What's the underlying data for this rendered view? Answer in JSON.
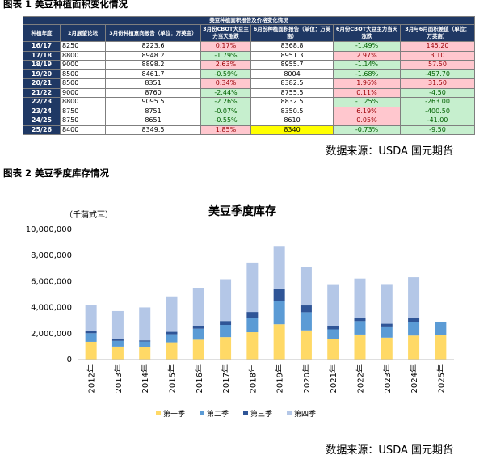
{
  "caption1": "图表 1 美豆种植面积变化情况",
  "caption2": "图表 2 美豆季度库存情况",
  "source1": "数据来源：USDA 国元期货",
  "source2": "数据来源：USDA 国元期货",
  "table": {
    "title": "美豆种植面积报告及价格变化情况",
    "headers": [
      "种植年度",
      "2月展望论坛",
      "3月份种植意向报告（单位：万英亩）",
      "3月份CBOT大豆主力当天涨跌",
      "6月份种植面积报告（单位：万英亩）",
      "6月份CBOT大豆主力当天涨跌",
      "3月与6月面积差值（单位：万英亩）"
    ],
    "rows": [
      {
        "year": "16/17",
        "feb": "8250",
        "mar": "8223.6",
        "marchg": "0.17%",
        "jun": "8368.8",
        "junchg": "-1.49%",
        "diff": "145.20"
      },
      {
        "year": "17/18",
        "feb": "8800",
        "mar": "8948.2",
        "marchg": "-1.79%",
        "jun": "8951.3",
        "junchg": "2.97%",
        "diff": "3.10"
      },
      {
        "year": "18/19",
        "feb": "9000",
        "mar": "8898.2",
        "marchg": "2.63%",
        "jun": "8955.7",
        "junchg": "-1.14%",
        "diff": "57.50"
      },
      {
        "year": "19/20",
        "feb": "8500",
        "mar": "8461.7",
        "marchg": "-0.59%",
        "jun": "8004",
        "junchg": "-1.68%",
        "diff": "-457.70"
      },
      {
        "year": "20/21",
        "feb": "8500",
        "mar": "8351",
        "marchg": "0.34%",
        "jun": "8382.5",
        "junchg": "1.96%",
        "diff": "31.50"
      },
      {
        "year": "21/22",
        "feb": "9000",
        "mar": "8760",
        "marchg": "-2.44%",
        "jun": "8755.5",
        "junchg": "0.11%",
        "diff": "-4.50"
      },
      {
        "year": "22/23",
        "feb": "8800",
        "mar": "9095.5",
        "marchg": "-2.26%",
        "jun": "8832.5",
        "junchg": "-1.25%",
        "diff": "-263.00"
      },
      {
        "year": "23/24",
        "feb": "8750",
        "mar": "8751",
        "marchg": "-0.07%",
        "jun": "8350.5",
        "junchg": "6.19%",
        "diff": "-400.50"
      },
      {
        "year": "24/25",
        "feb": "8750",
        "mar": "8651",
        "marchg": "-0.55%",
        "jun": "8610",
        "junchg": "0.05%",
        "diff": "-41.00"
      },
      {
        "year": "25/26",
        "feb": "8400",
        "mar": "8349.5",
        "marchg": "1.85%",
        "jun": "8340",
        "junchg": "-0.73%",
        "diff": "-9.50"
      }
    ],
    "colors": {
      "pink": "#ffc7ce",
      "green": "#c6efce",
      "yellow": "#ffff00",
      "header": "#1f3864"
    }
  },
  "chart_data": {
    "type": "bar",
    "stacked": true,
    "title": "美豆季度库存",
    "ylabel": "（千蒲式耳）",
    "ylim": [
      0,
      10000000
    ],
    "yticks": [
      "0",
      "2,000,000",
      "4,000,000",
      "6,000,000",
      "8,000,000",
      "10,000,000"
    ],
    "categories": [
      "2012年",
      "2013年",
      "2014年",
      "2015年",
      "2016年",
      "2017年",
      "2018年",
      "2019年",
      "2020年",
      "2021年",
      "2022年",
      "2023年",
      "2024年",
      "2025年"
    ],
    "series": [
      {
        "name": "第一季",
        "color": "#ffd966",
        "values": [
          1370000,
          1000000,
          990000,
          1330000,
          1530000,
          1730000,
          2110000,
          2720000,
          2250000,
          1560000,
          1930000,
          1690000,
          1850000,
          1910000
        ]
      },
      {
        "name": "第二季",
        "color": "#5b9bd5",
        "values": [
          660000,
          440000,
          400000,
          620000,
          850000,
          940000,
          1110000,
          1780000,
          1390000,
          770000,
          1030000,
          800000,
          1040000,
          1010000
        ]
      },
      {
        "name": "第三季",
        "color": "#2f5597",
        "values": [
          170000,
          140000,
          90000,
          190000,
          200000,
          300000,
          440000,
          910000,
          520000,
          260000,
          270000,
          270000,
          340000,
          0
        ]
      },
      {
        "name": "第四季",
        "color": "#b4c7e7",
        "values": [
          1970000,
          2150000,
          2530000,
          2720000,
          2900000,
          3210000,
          3800000,
          3270000,
          2930000,
          3150000,
          3000000,
          2990000,
          3100000,
          0
        ]
      }
    ],
    "legend": "bottom",
    "grid": false
  }
}
